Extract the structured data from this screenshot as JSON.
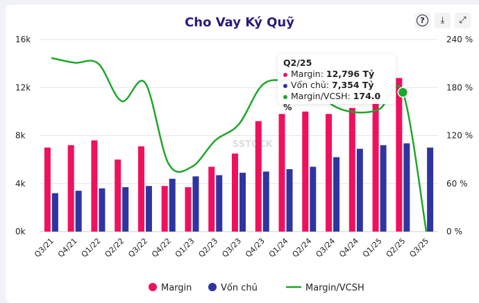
{
  "chart_data": {
    "type": "bar",
    "title": "Cho Vay Ký Quỹ",
    "categories": [
      "Q3/21",
      "Q4/21",
      "Q1/22",
      "Q2/22",
      "Q3/22",
      "Q4/22",
      "Q1/23",
      "Q2/23",
      "Q3/23",
      "Q4/23",
      "Q1/24",
      "Q2/24",
      "Q3/24",
      "Q4/24",
      "Q1/25",
      "Q2/25",
      "Q3/25"
    ],
    "series": [
      {
        "name": "Margin",
        "kind": "bar",
        "axis": "left",
        "color": "#f0105e",
        "values": [
          7.0,
          7.2,
          7.6,
          6.0,
          7.1,
          3.8,
          3.7,
          5.4,
          6.5,
          9.2,
          9.8,
          10.0,
          9.8,
          10.3,
          11.0,
          12.796,
          0
        ]
      },
      {
        "name": "Vốn chủ",
        "kind": "bar",
        "axis": "left",
        "color": "#2f35a0",
        "values": [
          3.2,
          3.4,
          3.6,
          3.7,
          3.8,
          4.4,
          4.6,
          4.7,
          4.9,
          5.0,
          5.2,
          5.4,
          6.2,
          6.9,
          7.2,
          7.354,
          7.0
        ]
      },
      {
        "name": "Margin/VCSH",
        "kind": "line",
        "axis": "right",
        "color": "#1ea62a",
        "values": [
          217,
          211,
          210,
          163,
          186,
          85,
          81,
          114,
          134,
          183,
          189,
          185,
          158,
          149,
          153,
          174,
          0
        ]
      }
    ],
    "left_axis": {
      "ylim": [
        0,
        16
      ],
      "ticks": [
        "0k",
        "4k",
        "8k",
        "12k",
        "16k"
      ]
    },
    "right_axis": {
      "ylim": [
        0,
        240
      ],
      "ticks": [
        "0 %",
        "60 %",
        "120 %",
        "180 %",
        "240 %"
      ]
    },
    "legend": "bottom",
    "grid": true
  },
  "tooltip": {
    "title": "Q2/25",
    "rows": [
      {
        "label": "Margin:",
        "value": "12,796 Tỷ",
        "color": "#f0105e"
      },
      {
        "label": "Vốn chủ:",
        "value": "7,354 Tỷ",
        "color": "#2f35a0"
      },
      {
        "label": "Margin/VCSH:",
        "value": "174.0 %",
        "color": "#1ea62a"
      }
    ]
  },
  "toolbar": {
    "help_icon": "?",
    "download_icon": "⤓",
    "expand_icon": "⤢"
  },
  "watermark": "SSTOCK"
}
